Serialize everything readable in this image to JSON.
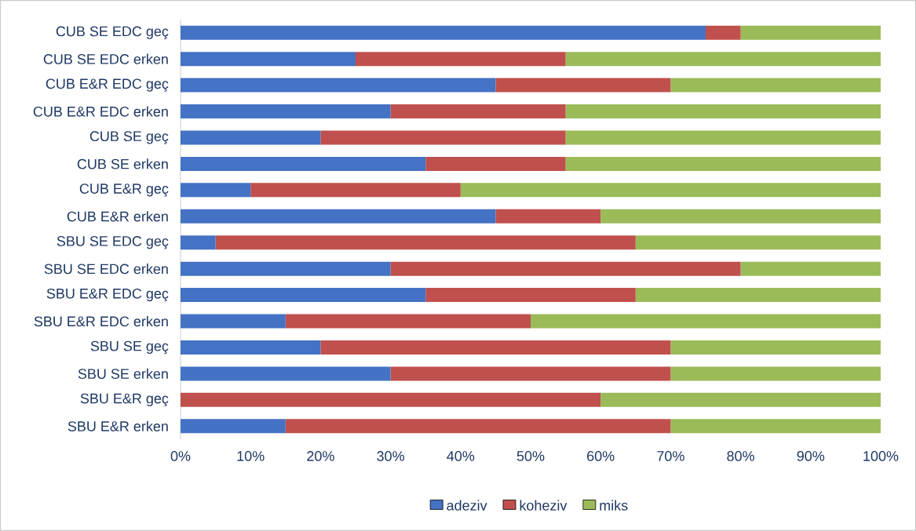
{
  "chart_data": {
    "type": "bar",
    "orientation": "horizontal",
    "stacked": true,
    "categories": [
      "CUB SE EDC geç",
      "CUB SE EDC erken",
      "CUB E&R EDC geç",
      "CUB E&R EDC erken",
      "CUB SE geç",
      "CUB SE erken",
      "CUB E&R geç",
      "CUB E&R erken",
      "SBU SE EDC geç",
      "SBU SE EDC erken",
      "SBU E&R EDC geç",
      "SBU E&R EDC erken",
      "SBU SE geç",
      "SBU SE erken",
      "SBU E&R geç",
      "SBU E&R erken"
    ],
    "series": [
      {
        "name": "adeziv",
        "color": "#4472c4",
        "values": [
          75,
          25,
          45,
          30,
          20,
          35,
          10,
          45,
          5,
          30,
          35,
          15,
          20,
          30,
          0,
          15
        ]
      },
      {
        "name": "koheziv",
        "color": "#c0504d",
        "values": [
          5,
          30,
          25,
          25,
          35,
          20,
          30,
          15,
          60,
          50,
          30,
          35,
          50,
          40,
          60,
          55
        ]
      },
      {
        "name": "miks",
        "color": "#9bbb59",
        "values": [
          20,
          45,
          30,
          45,
          45,
          45,
          60,
          40,
          35,
          20,
          35,
          50,
          30,
          30,
          40,
          30
        ]
      }
    ],
    "xlim": [
      0,
      100
    ],
    "xticks": [
      {
        "value": 0,
        "label": "0%"
      },
      {
        "value": 10,
        "label": "10%"
      },
      {
        "value": 20,
        "label": "20%"
      },
      {
        "value": 30,
        "label": "30%"
      },
      {
        "value": 40,
        "label": "40%"
      },
      {
        "value": 50,
        "label": "50%"
      },
      {
        "value": 60,
        "label": "60%"
      },
      {
        "value": 70,
        "label": "70%"
      },
      {
        "value": 80,
        "label": "80%"
      },
      {
        "value": 90,
        "label": "90%"
      },
      {
        "value": 100,
        "label": "100%"
      }
    ],
    "grid": false,
    "legend": "bottom"
  }
}
